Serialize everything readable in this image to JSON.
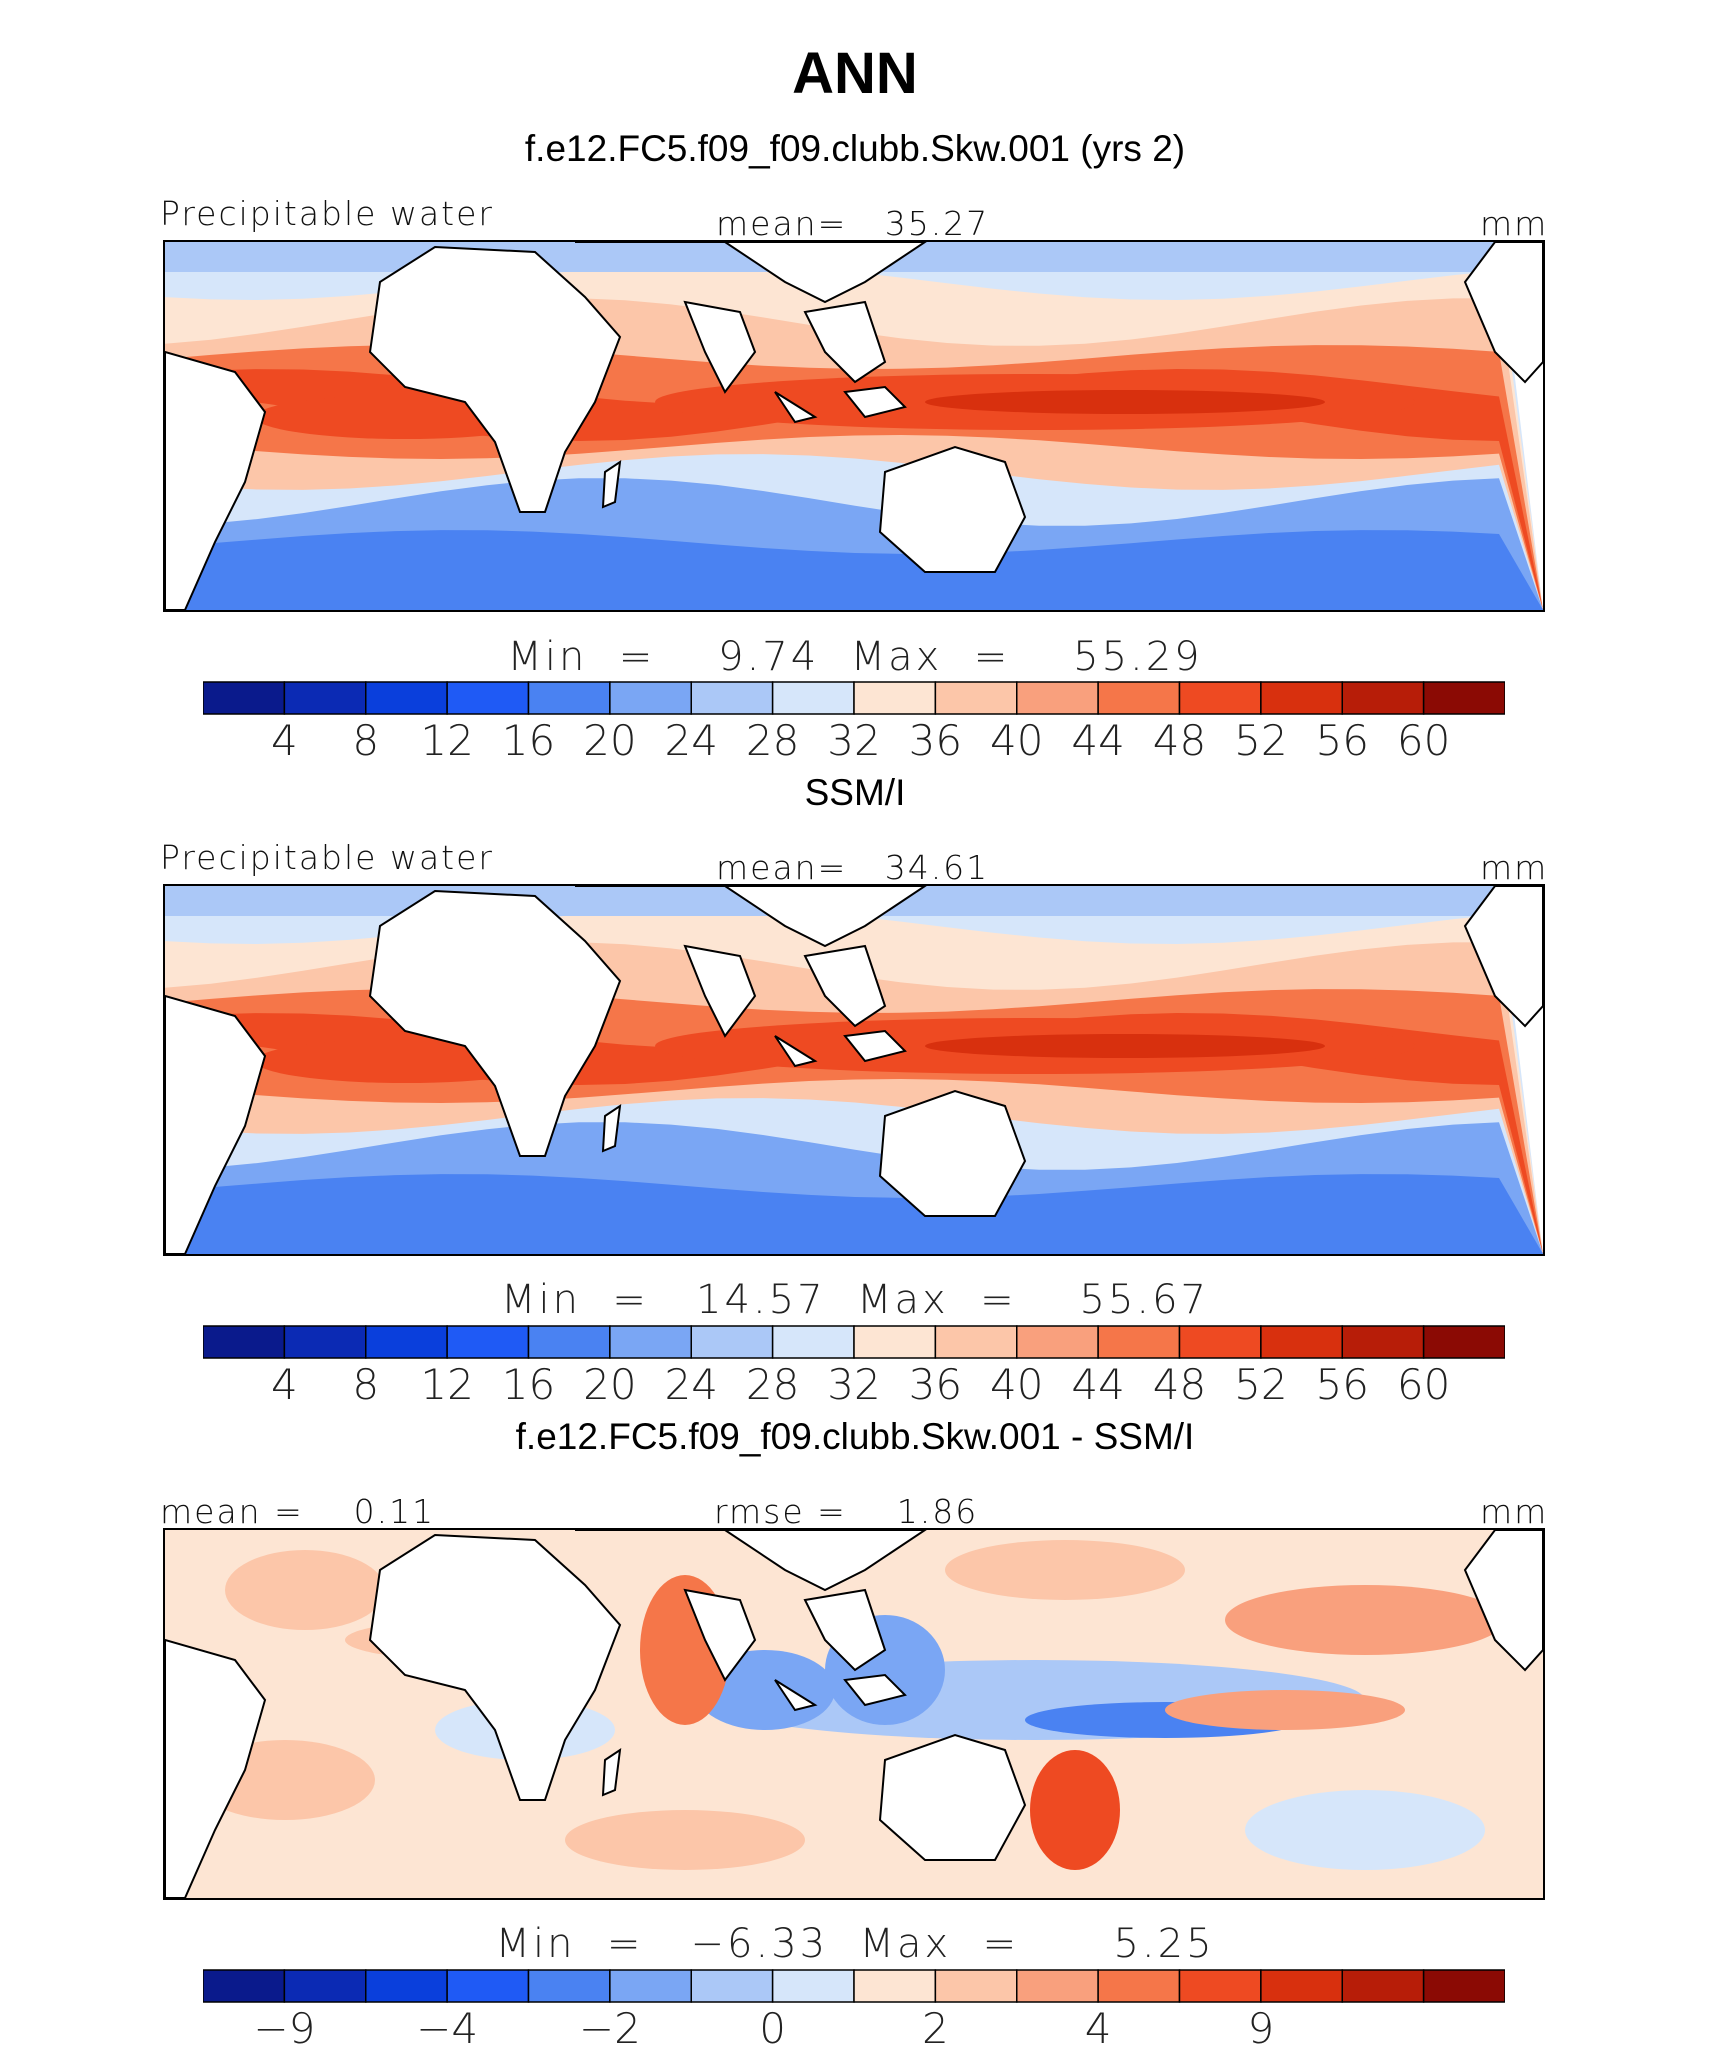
{
  "figure": {
    "title": "ANN"
  },
  "chart_data": [
    {
      "type": "heatmap",
      "panel_title": "f.e12.FC5.f09_f09.clubb.Skw.001 (yrs 2)",
      "variable": "Precipitable water",
      "stat1": "mean=   35.27",
      "stat2": "",
      "units": "mm",
      "minmax": "Min  =    9.74  Max  =    55.29",
      "min": 9.74,
      "max": 55.29,
      "mean": 35.27,
      "colorbar": {
        "colors": [
          "#0a1a8c",
          "#0b2ab4",
          "#0a3fdc",
          "#1f5af5",
          "#4a82f2",
          "#7aa6f4",
          "#abc8f7",
          "#d6e6fa",
          "#fde5d3",
          "#fcc6a9",
          "#f9a07d",
          "#f57649",
          "#ee4a22",
          "#d8300e",
          "#b71d08",
          "#8b0a04"
        ],
        "ticks": [
          "4",
          "8",
          "12",
          "16",
          "20",
          "24",
          "28",
          "32",
          "36",
          "40",
          "44",
          "48",
          "52",
          "56",
          "60"
        ]
      }
    },
    {
      "type": "heatmap",
      "panel_title": "SSM/I",
      "variable": "Precipitable water",
      "stat1": "mean=   34.61",
      "stat2": "",
      "units": "mm",
      "minmax": "Min  =   14.57  Max  =    55.67",
      "min": 14.57,
      "max": 55.67,
      "mean": 34.61,
      "colorbar": {
        "colors": [
          "#0a1a8c",
          "#0b2ab4",
          "#0a3fdc",
          "#1f5af5",
          "#4a82f2",
          "#7aa6f4",
          "#abc8f7",
          "#d6e6fa",
          "#fde5d3",
          "#fcc6a9",
          "#f9a07d",
          "#f57649",
          "#ee4a22",
          "#d8300e",
          "#b71d08",
          "#8b0a04"
        ],
        "ticks": [
          "4",
          "8",
          "12",
          "16",
          "20",
          "24",
          "28",
          "32",
          "36",
          "40",
          "44",
          "48",
          "52",
          "56",
          "60"
        ]
      }
    },
    {
      "type": "heatmap",
      "panel_title": "f.e12.FC5.f09_f09.clubb.Skw.001 - SSM/I",
      "variable": "",
      "stat1": "mean =    0.11",
      "stat2": "rmse =    1.86",
      "units": "mm",
      "minmax": "Min  =   −6.33  Max  =      5.25",
      "min": -6.33,
      "max": 5.25,
      "mean": 0.11,
      "rmse": 1.86,
      "colorbar": {
        "colors": [
          "#0a1a8c",
          "#0b2ab4",
          "#0a3fdc",
          "#1f5af5",
          "#4a82f2",
          "#7aa6f4",
          "#abc8f7",
          "#d6e6fa",
          "#fde5d3",
          "#fcc6a9",
          "#f9a07d",
          "#f57649",
          "#ee4a22",
          "#d8300e",
          "#b71d08",
          "#8b0a04"
        ],
        "ticks": [
          "−9",
          "",
          "−4",
          "",
          "−2",
          "",
          "0",
          "",
          "2",
          "",
          "4",
          "",
          "9",
          "",
          " "
        ]
      }
    }
  ]
}
